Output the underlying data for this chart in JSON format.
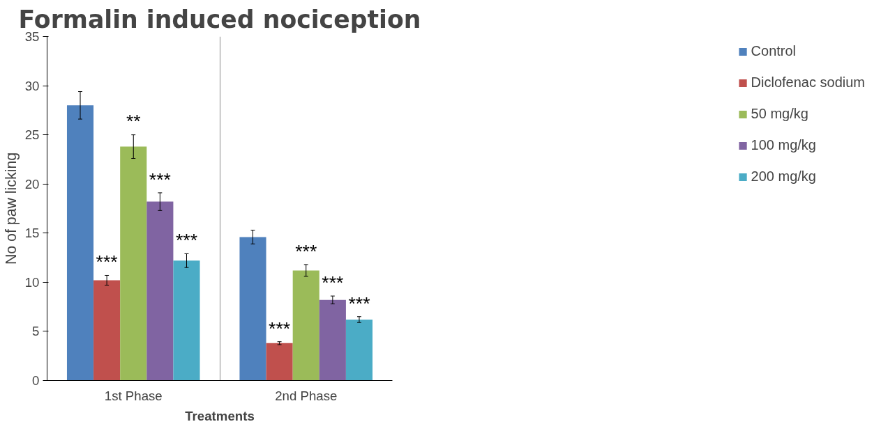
{
  "chart_data": {
    "type": "bar",
    "title": "Formalin induced nociception",
    "xlabel": "Treatments",
    "ylabel": "No of paw licking",
    "categories": [
      "1st Phase",
      "2nd Phase"
    ],
    "series": [
      {
        "name": "Control",
        "color": "#4f81bd",
        "values": [
          28,
          14.6
        ],
        "errors": [
          1.4,
          0.7
        ]
      },
      {
        "name": "Diclofenac sodium",
        "color": "#c0504d",
        "values": [
          10.2,
          3.8
        ],
        "errors": [
          0.5,
          0.15
        ],
        "value_labels": [
          "***",
          "***"
        ]
      },
      {
        "name": "50 mg/kg",
        "color": "#9bbb59",
        "values": [
          23.8,
          11.2
        ],
        "errors": [
          1.2,
          0.6
        ],
        "value_labels": [
          "**",
          "***"
        ]
      },
      {
        "name": "100 mg/kg",
        "color": "#8064a2",
        "values": [
          18.2,
          8.2
        ],
        "errors": [
          0.9,
          0.4
        ],
        "value_labels": [
          "***",
          "***"
        ]
      },
      {
        "name": "200 mg/kg",
        "color": "#4bacc6",
        "values": [
          12.2,
          6.2
        ],
        "errors": [
          0.7,
          0.3
        ],
        "value_labels": [
          "***",
          "***"
        ]
      }
    ],
    "ylim": [
      0,
      35
    ],
    "yticks": [
      0,
      5,
      10,
      15,
      20,
      25,
      30,
      35
    ],
    "grid": "x",
    "legend": "right"
  }
}
